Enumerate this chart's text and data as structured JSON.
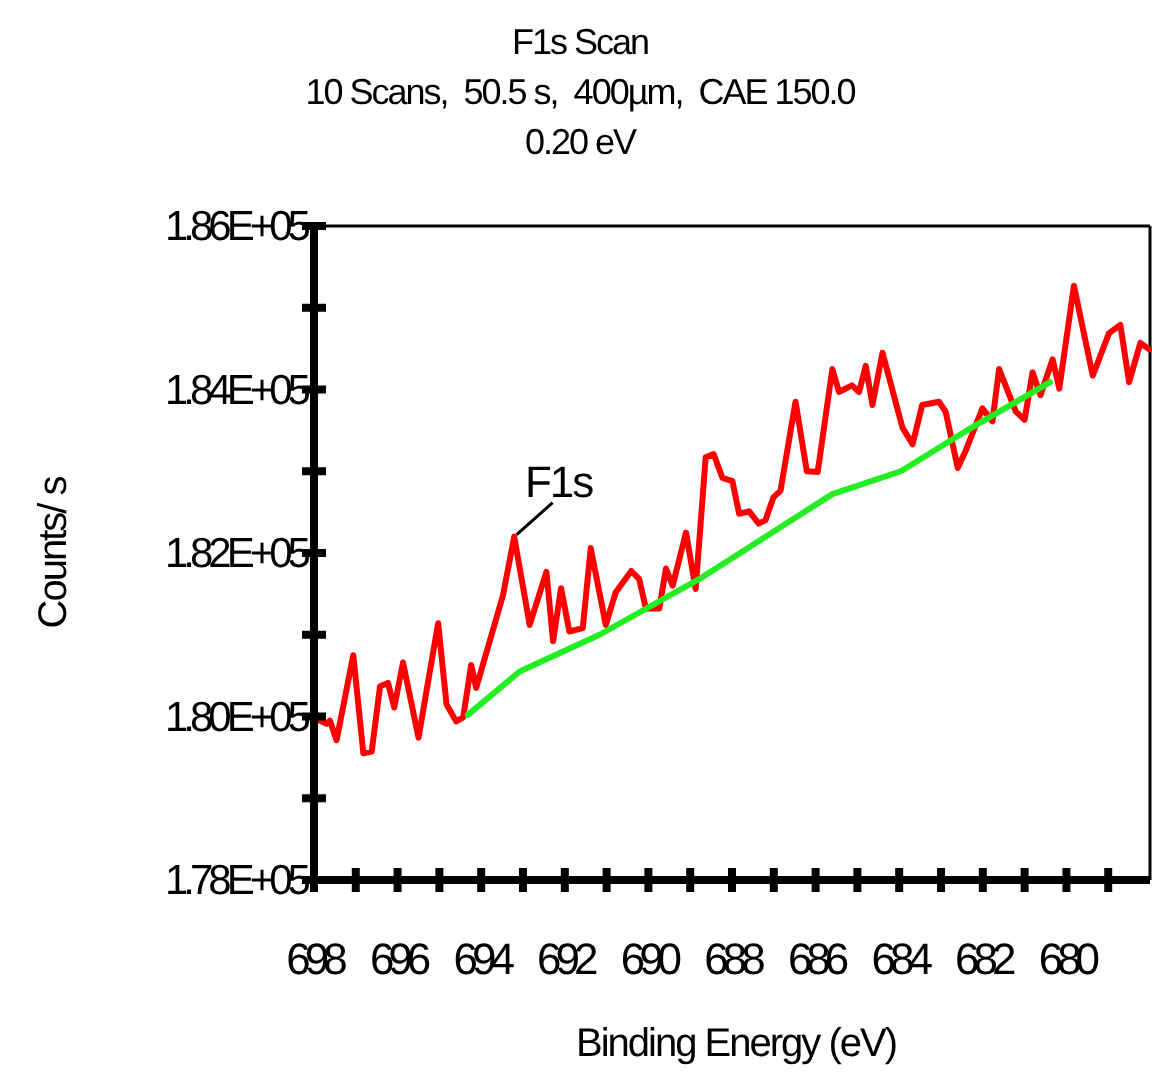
{
  "chart_data": {
    "type": "line",
    "title": "F1s Scan",
    "subtitle": "10 Scans,  50.5 s,  400µm,  CAE 150.0\n0.20 eV",
    "xlabel": "Binding Energy (eV)",
    "ylabel": "Counts/ s",
    "xlim": [
      698,
      678
    ],
    "xticks": [
      698,
      {
        "value": 697,
        "label": null
      },
      696,
      {
        "value": 695,
        "label": null
      },
      694,
      {
        "value": 693,
        "label": null
      },
      692,
      {
        "value": 691,
        "label": null
      },
      690,
      {
        "value": 689,
        "label": null
      },
      688,
      {
        "value": 687,
        "label": null
      },
      686,
      {
        "value": 685,
        "label": null
      },
      684,
      {
        "value": 683,
        "label": null
      },
      682,
      {
        "value": 681,
        "label": null
      },
      680,
      {
        "value": 679,
        "label": null
      }
    ],
    "ylim": [
      178000,
      186000
    ],
    "yticks": [
      {
        "value": 178000,
        "label": "1.78E+05"
      },
      {
        "value": 179000,
        "label": null
      },
      {
        "value": 180000,
        "label": "1.80E+05"
      },
      {
        "value": 181000,
        "label": null
      },
      {
        "value": 182000,
        "label": "1.82E+05"
      },
      {
        "value": 183000,
        "label": null
      },
      {
        "value": 184000,
        "label": "1.84E+05"
      },
      {
        "value": 185000,
        "label": null
      },
      {
        "value": 186000,
        "label": "1.86E+05"
      }
    ],
    "grid": false,
    "marker": "none",
    "line_style": "solid",
    "annotations": [
      {
        "text": "F1s",
        "x": 693.2,
        "y": 182200
      }
    ],
    "series": [
      {
        "color": "#ff0000",
        "x": [
          698,
          697.86,
          697.7,
          697.62,
          697.46,
          697.06,
          696.82,
          696.62,
          696.42,
          696.23,
          696.08,
          695.87,
          695.5,
          695.03,
          694.83,
          694.6,
          694.43,
          694.24,
          694.12,
          693.48,
          693.21,
          692.84,
          692.44,
          692.28,
          692.09,
          691.89,
          691.57,
          691.38,
          691.02,
          690.78,
          690.41,
          690.22,
          690.06,
          689.74,
          689.58,
          689.42,
          689.1,
          688.87,
          688.63,
          688.44,
          688.23,
          687.99,
          687.83,
          687.59,
          687.36,
          687.2,
          687.01,
          686.84,
          686.48,
          686.21,
          685.95,
          685.6,
          685.44,
          685.13,
          684.96,
          684.8,
          684.64,
          684.4,
          683.92,
          683.68,
          683.45,
          683.05,
          682.89,
          682.6,
          682.41,
          682.01,
          681.77,
          681.61,
          681.21,
          681,
          680.81,
          680.62,
          680.33,
          680.17,
          679.82,
          679.37,
          678.98,
          678.71,
          678.5,
          678.23,
          678.02
        ],
        "values": [
          180070,
          179950,
          179910,
          179950,
          179710,
          180750,
          179550,
          179570,
          180370,
          180410,
          180110,
          180660,
          179740,
          181140,
          180150,
          179940,
          179990,
          180630,
          180350,
          181480,
          182200,
          181120,
          181770,
          180920,
          181570,
          181040,
          181080,
          182060,
          181120,
          181520,
          181780,
          181680,
          181320,
          181320,
          181810,
          181600,
          182250,
          181560,
          183170,
          183210,
          182920,
          182880,
          182480,
          182510,
          182360,
          182400,
          182680,
          182760,
          183850,
          183000,
          182990,
          184250,
          183970,
          184050,
          183970,
          184290,
          183810,
          184450,
          183530,
          183330,
          183810,
          183850,
          183730,
          183040,
          183250,
          183770,
          183610,
          184250,
          183730,
          183630,
          184210,
          183930,
          184370,
          184010,
          185270,
          184170,
          184690,
          184790,
          184090,
          184570,
          184490
        ]
      },
      {
        "color": "#22ee22",
        "x": [
          694.32,
          693.08,
          691.17,
          688.79,
          685.6,
          683.96,
          682.41,
          680.39
        ],
        "values": [
          180020,
          180550,
          181000,
          181680,
          182720,
          183000,
          183490,
          184090
        ]
      }
    ]
  }
}
